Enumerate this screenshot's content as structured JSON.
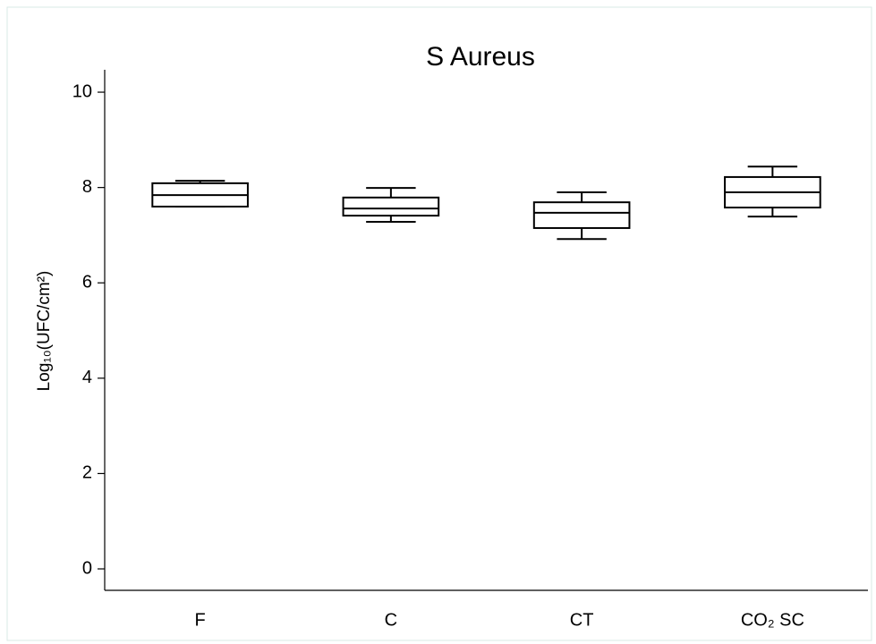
{
  "chart_data": {
    "type": "box",
    "title": "S Aureus",
    "y_label": "Log₁₀(UFC/cm²)",
    "categories": [
      "F",
      "C",
      "CT",
      "CO₂ SC"
    ],
    "min": [
      7.6,
      7.28,
      6.92,
      7.39
    ],
    "q1": [
      7.6,
      7.41,
      7.15,
      7.58
    ],
    "median": [
      7.84,
      7.56,
      7.47,
      7.9
    ],
    "q3": [
      8.09,
      7.79,
      7.69,
      8.22
    ],
    "max": [
      8.14,
      7.99,
      7.9,
      8.44
    ],
    "color": "#000000",
    "ylim": [
      -0.45,
      10.47
    ],
    "yticks": [
      0,
      2,
      4,
      6,
      8,
      10
    ],
    "grid": false
  }
}
